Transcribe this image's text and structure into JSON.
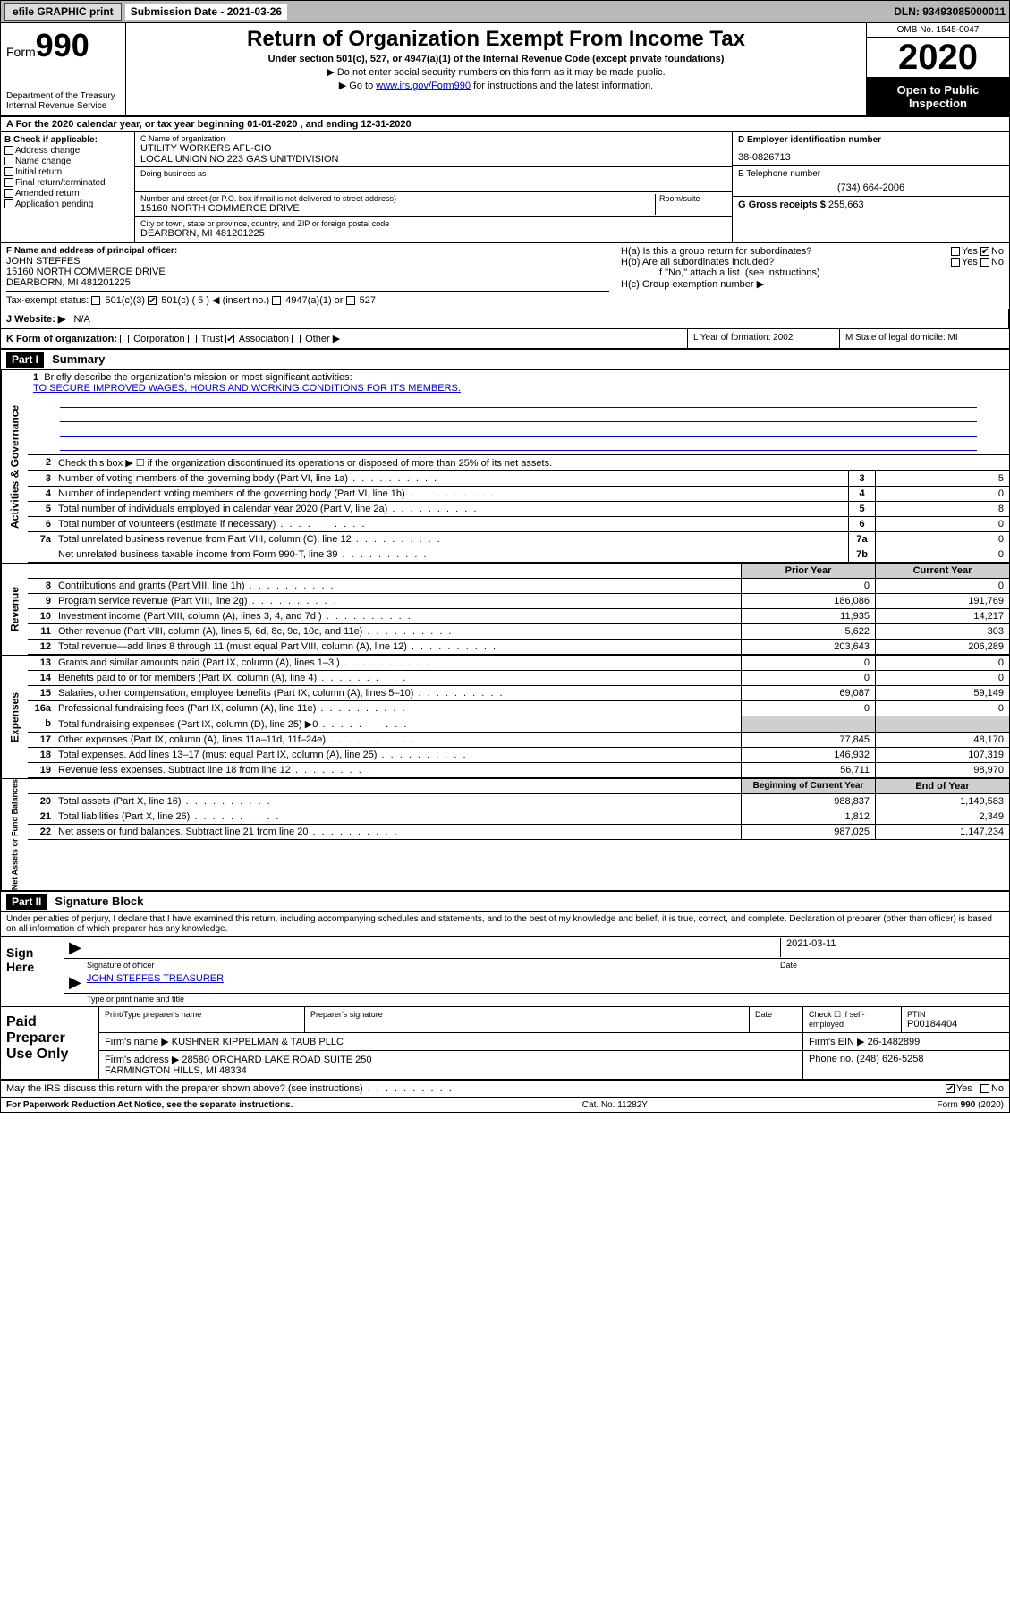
{
  "topbar": {
    "efile": "efile GRAPHIC print",
    "subdate_label": "Submission Date - 2021-03-26",
    "dln": "DLN: 93493085000011"
  },
  "header": {
    "form_label": "Form",
    "form_num": "990",
    "dept": "Department of the Treasury\nInternal Revenue Service",
    "title": "Return of Organization Exempt From Income Tax",
    "subtitle": "Under section 501(c), 527, or 4947(a)(1) of the Internal Revenue Code (except private foundations)",
    "note1": "▶ Do not enter social security numbers on this form as it may be made public.",
    "note2_pre": "▶ Go to ",
    "note2_link": "www.irs.gov/Form990",
    "note2_post": " for instructions and the latest information.",
    "omb": "OMB No. 1545-0047",
    "year": "2020",
    "open": "Open to Public Inspection"
  },
  "lineA": "A For the 2020 calendar year, or tax year beginning 01-01-2020    , and ending 12-31-2020",
  "boxB": {
    "label": "B Check if applicable:",
    "items": [
      "Address change",
      "Name change",
      "Initial return",
      "Final return/terminated",
      "Amended return",
      "Application pending"
    ]
  },
  "boxC": {
    "name_lbl": "C Name of organization",
    "name": "UTILITY WORKERS AFL-CIO\nLOCAL UNION NO 223 GAS UNIT/DIVISION",
    "dba_lbl": "Doing business as",
    "addr_lbl": "Number and street (or P.O. box if mail is not delivered to street address)",
    "room_lbl": "Room/suite",
    "addr": "15160 NORTH COMMERCE DRIVE",
    "city_lbl": "City or town, state or province, country, and ZIP or foreign postal code",
    "city": "DEARBORN, MI  481201225"
  },
  "boxD": {
    "lbl": "D Employer identification number",
    "val": "38-0826713"
  },
  "boxE": {
    "lbl": "E Telephone number",
    "val": "(734) 664-2006"
  },
  "boxG": {
    "lbl": "G Gross receipts $",
    "val": "255,663"
  },
  "boxF": {
    "lbl": "F Name and address of principal officer:",
    "name": "JOHN STEFFES",
    "addr": "15160 NORTH COMMERCE DRIVE\nDEARBORN, MI  481201225"
  },
  "boxH": {
    "a": "H(a)  Is this a group return for subordinates?",
    "b": "H(b)  Are all subordinates included?",
    "b_note": "If \"No,\" attach a list. (see instructions)",
    "c": "H(c)  Group exemption number ▶",
    "yes": "Yes",
    "no": "No"
  },
  "boxI": {
    "lbl": "Tax-exempt status:",
    "o1": "501(c)(3)",
    "o2": "501(c) ( 5 ) ◀ (insert no.)",
    "o3": "4947(a)(1) or",
    "o4": "527"
  },
  "boxJ": {
    "lbl": "J  Website: ▶",
    "val": "N/A"
  },
  "boxK": {
    "lbl": "K Form of organization:",
    "o1": "Corporation",
    "o2": "Trust",
    "o3": "Association",
    "o4": "Other ▶"
  },
  "boxL": "L Year of formation: 2002",
  "boxM": "M State of legal domicile: MI",
  "part1": {
    "hdr": "Part I",
    "title": "Summary",
    "q1": "Briefly describe the organization's mission or most significant activities:",
    "mission": "TO SECURE IMPROVED WAGES, HOURS AND WORKING CONDITIONS FOR ITS MEMBERS.",
    "q2": "Check this box ▶ ☐  if the organization discontinued its operations or disposed of more than 25% of its net assets.",
    "lines_simple": [
      {
        "n": "3",
        "t": "Number of voting members of the governing body (Part VI, line 1a)",
        "box": "3",
        "v": "5"
      },
      {
        "n": "4",
        "t": "Number of independent voting members of the governing body (Part VI, line 1b)",
        "box": "4",
        "v": "0"
      },
      {
        "n": "5",
        "t": "Total number of individuals employed in calendar year 2020 (Part V, line 2a)",
        "box": "5",
        "v": "8"
      },
      {
        "n": "6",
        "t": "Total number of volunteers (estimate if necessary)",
        "box": "6",
        "v": "0"
      },
      {
        "n": "7a",
        "t": "Total unrelated business revenue from Part VIII, column (C), line 12",
        "box": "7a",
        "v": "0"
      },
      {
        "n": "",
        "t": "Net unrelated business taxable income from Form 990-T, line 39",
        "box": "7b",
        "v": "0"
      }
    ],
    "colhdr_prior": "Prior Year",
    "colhdr_curr": "Current Year",
    "revenue": [
      {
        "n": "8",
        "t": "Contributions and grants (Part VIII, line 1h)",
        "p": "0",
        "c": "0"
      },
      {
        "n": "9",
        "t": "Program service revenue (Part VIII, line 2g)",
        "p": "186,086",
        "c": "191,769"
      },
      {
        "n": "10",
        "t": "Investment income (Part VIII, column (A), lines 3, 4, and 7d )",
        "p": "11,935",
        "c": "14,217"
      },
      {
        "n": "11",
        "t": "Other revenue (Part VIII, column (A), lines 5, 6d, 8c, 9c, 10c, and 11e)",
        "p": "5,622",
        "c": "303"
      },
      {
        "n": "12",
        "t": "Total revenue—add lines 8 through 11 (must equal Part VIII, column (A), line 12)",
        "p": "203,643",
        "c": "206,289"
      }
    ],
    "expenses": [
      {
        "n": "13",
        "t": "Grants and similar amounts paid (Part IX, column (A), lines 1–3 )",
        "p": "0",
        "c": "0"
      },
      {
        "n": "14",
        "t": "Benefits paid to or for members (Part IX, column (A), line 4)",
        "p": "0",
        "c": "0"
      },
      {
        "n": "15",
        "t": "Salaries, other compensation, employee benefits (Part IX, column (A), lines 5–10)",
        "p": "69,087",
        "c": "59,149"
      },
      {
        "n": "16a",
        "t": "Professional fundraising fees (Part IX, column (A), line 11e)",
        "p": "0",
        "c": "0"
      },
      {
        "n": "b",
        "t": "Total fundraising expenses (Part IX, column (D), line 25) ▶0",
        "p": "",
        "c": "",
        "grey": true
      },
      {
        "n": "17",
        "t": "Other expenses (Part IX, column (A), lines 11a–11d, 11f–24e)",
        "p": "77,845",
        "c": "48,170"
      },
      {
        "n": "18",
        "t": "Total expenses. Add lines 13–17 (must equal Part IX, column (A), line 25)",
        "p": "146,932",
        "c": "107,319"
      },
      {
        "n": "19",
        "t": "Revenue less expenses. Subtract line 18 from line 12",
        "p": "56,711",
        "c": "98,970"
      }
    ],
    "colhdr_beg": "Beginning of Current Year",
    "colhdr_end": "End of Year",
    "netassets": [
      {
        "n": "20",
        "t": "Total assets (Part X, line 16)",
        "p": "988,837",
        "c": "1,149,583"
      },
      {
        "n": "21",
        "t": "Total liabilities (Part X, line 26)",
        "p": "1,812",
        "c": "2,349"
      },
      {
        "n": "22",
        "t": "Net assets or fund balances. Subtract line 21 from line 20",
        "p": "987,025",
        "c": "1,147,234"
      }
    ]
  },
  "sidelabels": {
    "ag": "Activities & Governance",
    "rev": "Revenue",
    "exp": "Expenses",
    "na": "Net Assets or Fund Balances"
  },
  "part2": {
    "hdr": "Part II",
    "title": "Signature Block",
    "decl": "Under penalties of perjury, I declare that I have examined this return, including accompanying schedules and statements, and to the best of my knowledge and belief, it is true, correct, and complete. Declaration of preparer (other than officer) is based on all information of which preparer has any knowledge.",
    "sign_here": "Sign Here",
    "sig_officer": "Signature of officer",
    "date": "2021-03-11",
    "date_lbl": "Date",
    "name_title": "JOHN STEFFES TREASURER",
    "name_title_lbl": "Type or print name and title"
  },
  "paid": {
    "lbl": "Paid Preparer Use Only",
    "h1": "Print/Type preparer's name",
    "h2": "Preparer's signature",
    "h3": "Date",
    "h4_a": "Check ☐ if self-employed",
    "h4_b": "PTIN",
    "ptin": "P00184404",
    "firm_name_lbl": "Firm's name    ▶",
    "firm_name": "KUSHNER KIPPELMAN & TAUB PLLC",
    "firm_ein_lbl": "Firm's EIN ▶",
    "firm_ein": "26-1482899",
    "firm_addr_lbl": "Firm's address ▶",
    "firm_addr": "28580 ORCHARD LAKE ROAD SUITE 250\nFARMINGTON HILLS, MI  48334",
    "phone_lbl": "Phone no.",
    "phone": "(248) 626-5258"
  },
  "discuss": {
    "q": "May the IRS discuss this return with the preparer shown above? (see instructions)",
    "yes": "Yes",
    "no": "No"
  },
  "footer": {
    "l": "For Paperwork Reduction Act Notice, see the separate instructions.",
    "c": "Cat. No. 11282Y",
    "r": "Form 990 (2020)"
  }
}
